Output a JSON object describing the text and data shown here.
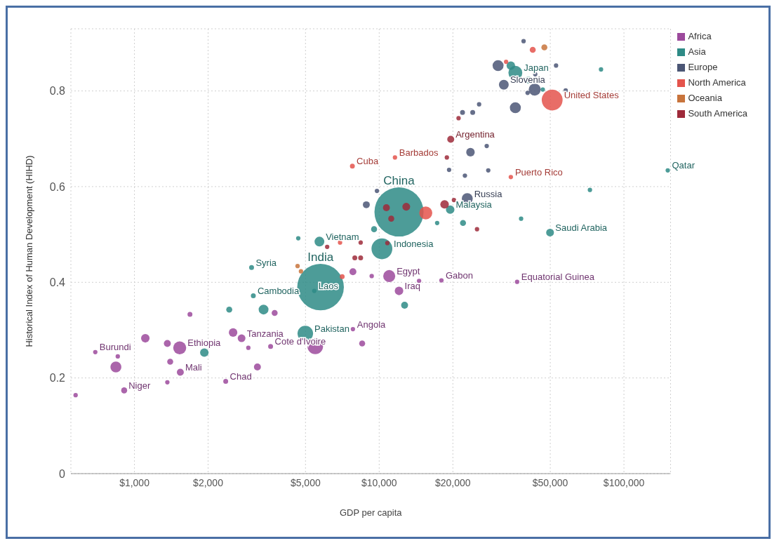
{
  "chart_data": {
    "type": "bubble",
    "xlabel": "GDP per capita",
    "ylabel": "Historical Index of Human Development (HIHD)",
    "log": "x",
    "grid": true,
    "legend": "top right",
    "marker": "circle",
    "xlim": [
      550,
      155000
    ],
    "xticks": [
      {
        "value": 1000,
        "label": "$1,000"
      },
      {
        "value": 2000,
        "label": "$2,000"
      },
      {
        "value": 5000,
        "label": "$5,000"
      },
      {
        "value": 10000,
        "label": "$10,000"
      },
      {
        "value": 20000,
        "label": "$20,000"
      },
      {
        "value": 50000,
        "label": "$50,000"
      },
      {
        "value": 100000,
        "label": "$100,000"
      }
    ],
    "ylim": [
      0,
      0.93
    ],
    "yticks": [
      0,
      0.2,
      0.4,
      0.6,
      0.8
    ],
    "series": [
      {
        "name": "Africa",
        "color": "#9c4a9c",
        "x": [
          575,
          692,
          840,
          908,
          855,
          1108,
          1363,
          1363,
          1531,
          1400,
          1540,
          1686,
          2530,
          2740,
          3740,
          2920,
          2360,
          3180,
          3600,
          5480,
          8520,
          7810,
          10990,
          12050,
          7810,
          9320,
          14550,
          17960,
          36600,
          13800
        ],
        "values": [
          0.164,
          0.254,
          0.223,
          0.174,
          0.245,
          0.283,
          0.272,
          0.191,
          0.263,
          0.234,
          0.212,
          0.333,
          0.295,
          0.283,
          0.336,
          0.263,
          0.193,
          0.223,
          0.266,
          0.266,
          0.272,
          0.302,
          0.413,
          0.382,
          0.422,
          0.413,
          0.403,
          0.404,
          0.401,
          0.48
        ],
        "sizes": [
          0.008,
          0.008,
          0.05,
          0.015,
          0.008,
          0.03,
          0.02,
          0.008,
          0.07,
          0.015,
          0.02,
          0.01,
          0.03,
          0.025,
          0.015,
          0.008,
          0.01,
          0.02,
          0.01,
          0.1,
          0.015,
          0.008,
          0.06,
          0.03,
          0.02,
          0.008,
          0.008,
          0.008,
          0.008,
          0.008
        ]
      },
      {
        "name": "Asia",
        "color": "#2e8b86",
        "x": [
          1930,
          2440,
          3370,
          3010,
          3060,
          5760,
          5430,
          4990,
          5700,
          4670,
          10260,
          9530,
          12050,
          12700,
          19500,
          22000,
          17250,
          36000,
          34500,
          40700,
          46600,
          72600,
          49900,
          151000,
          80600,
          38000
        ],
        "values": [
          0.253,
          0.343,
          0.343,
          0.431,
          0.372,
          0.39,
          0.382,
          0.293,
          0.485,
          0.492,
          0.47,
          0.511,
          0.547,
          0.352,
          0.552,
          0.524,
          0.524,
          0.838,
          0.853,
          0.823,
          0.803,
          0.593,
          0.504,
          0.634,
          0.845,
          0.533
        ],
        "sizes": [
          0.03,
          0.015,
          0.04,
          0.01,
          0.01,
          0.9,
          0.008,
          0.1,
          0.04,
          0.008,
          0.18,
          0.015,
          1,
          0.02,
          0.03,
          0.015,
          0.008,
          0.08,
          0.03,
          0.02,
          0.008,
          0.008,
          0.025,
          0.008,
          0.008,
          0.008
        ]
      },
      {
        "name": "Europe",
        "color": "#4b5675",
        "x": [
          8860,
          9790,
          22900,
          22400,
          19300,
          27900,
          23600,
          27500,
          21900,
          24100,
          25600,
          30600,
          32300,
          36000,
          43200,
          43400,
          40400,
          52800,
          57800,
          38900
        ],
        "values": [
          0.562,
          0.591,
          0.575,
          0.623,
          0.635,
          0.634,
          0.672,
          0.685,
          0.755,
          0.755,
          0.772,
          0.853,
          0.813,
          0.765,
          0.803,
          0.835,
          0.796,
          0.853,
          0.801,
          0.904
        ],
        "sizes": [
          0.02,
          0.008,
          0.05,
          0.008,
          0.008,
          0.008,
          0.03,
          0.008,
          0.01,
          0.01,
          0.008,
          0.05,
          0.04,
          0.05,
          0.06,
          0.008,
          0.008,
          0.008,
          0.008,
          0.008
        ]
      },
      {
        "name": "North America",
        "color": "#e4544c",
        "x": [
          50900,
          34500,
          7770,
          11600,
          15500,
          42400,
          33000,
          6920,
          7060
        ],
        "values": [
          0.781,
          0.62,
          0.643,
          0.661,
          0.545,
          0.886,
          0.861,
          0.483,
          0.412
        ],
        "sizes": [
          0.18,
          0.008,
          0.01,
          0.008,
          0.07,
          0.015,
          0.008,
          0.008,
          0.01
        ]
      },
      {
        "name": "Oceania",
        "color": "#c8743c",
        "x": [
          47300,
          4640,
          4790
        ],
        "values": [
          0.891,
          0.434,
          0.423
        ],
        "sizes": [
          0.015,
          0.008,
          0.008
        ]
      },
      {
        "name": "South America",
        "color": "#9e2a3a",
        "x": [
          19600,
          21100,
          18900,
          10700,
          12900,
          11200,
          18500,
          20200,
          10800,
          8400,
          6130,
          7950,
          8400,
          25100
        ],
        "values": [
          0.699,
          0.743,
          0.661,
          0.556,
          0.558,
          0.533,
          0.563,
          0.572,
          0.482,
          0.483,
          0.474,
          0.451,
          0.451,
          0.511
        ],
        "sizes": [
          0.02,
          0.008,
          0.008,
          0.02,
          0.025,
          0.015,
          0.03,
          0.008,
          0.008,
          0.008,
          0.008,
          0.01,
          0.01,
          0.008
        ]
      }
    ],
    "annotations": [
      {
        "text": "Burundi",
        "x": 692,
        "y": 0.254
      },
      {
        "text": "Niger",
        "x": 908,
        "y": 0.174
      },
      {
        "text": "Ethiopia",
        "x": 1531,
        "y": 0.263
      },
      {
        "text": "Mali",
        "x": 1540,
        "y": 0.212
      },
      {
        "text": "Tanzania",
        "x": 2740,
        "y": 0.283
      },
      {
        "text": "Chad",
        "x": 2360,
        "y": 0.193
      },
      {
        "text": "Cote d'Ivoire",
        "x": 3600,
        "y": 0.266
      },
      {
        "text": "Angola",
        "x": 7810,
        "y": 0.302
      },
      {
        "text": "Egypt",
        "x": 10990,
        "y": 0.413
      },
      {
        "text": "Iraq",
        "x": 12050,
        "y": 0.382
      },
      {
        "text": "Gabon",
        "x": 17960,
        "y": 0.404
      },
      {
        "text": "Equatorial Guinea",
        "x": 36600,
        "y": 0.401
      },
      {
        "text": "Syria",
        "x": 3010,
        "y": 0.431
      },
      {
        "text": "Cambodia",
        "x": 3060,
        "y": 0.372
      },
      {
        "text": "India",
        "x": 5760,
        "y": 0.39
      },
      {
        "text": "Laos",
        "x": 5430,
        "y": 0.382
      },
      {
        "text": "Pakistan",
        "x": 4990,
        "y": 0.293
      },
      {
        "text": "Vietnam",
        "x": 5700,
        "y": 0.485
      },
      {
        "text": "Indonesia",
        "x": 10260,
        "y": 0.47
      },
      {
        "text": "China",
        "x": 12050,
        "y": 0.547
      },
      {
        "text": "Malaysia",
        "x": 19500,
        "y": 0.552
      },
      {
        "text": "Japan",
        "x": 36000,
        "y": 0.838
      },
      {
        "text": "Saudi Arabia",
        "x": 49900,
        "y": 0.504
      },
      {
        "text": "Qatar",
        "x": 151000,
        "y": 0.634
      },
      {
        "text": "Russia",
        "x": 22900,
        "y": 0.575
      },
      {
        "text": "Slovenia",
        "x": 32300,
        "y": 0.813
      },
      {
        "text": "United States",
        "x": 50900,
        "y": 0.781
      },
      {
        "text": "Puerto Rico",
        "x": 34500,
        "y": 0.62
      },
      {
        "text": "Cuba",
        "x": 7770,
        "y": 0.643
      },
      {
        "text": "Barbados",
        "x": 11600,
        "y": 0.661
      },
      {
        "text": "Argentina",
        "x": 19600,
        "y": 0.699
      }
    ]
  }
}
